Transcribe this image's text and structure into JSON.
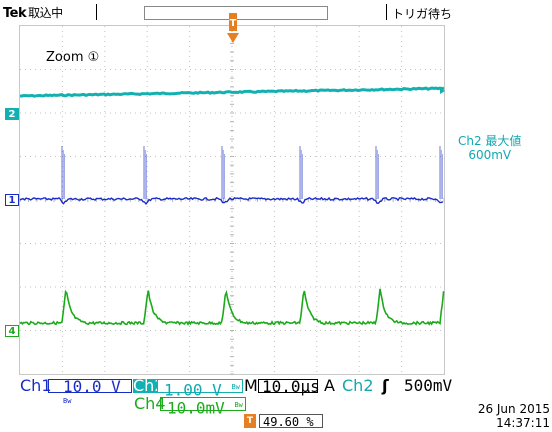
{
  "header": {
    "brand": "Tek",
    "acq_state": "取込中",
    "trigger_status": "トリガ待ち",
    "trigger_marker": "T"
  },
  "screen": {
    "zoom_label": "Zoom ①",
    "markers": {
      "ch2": "2",
      "ch1": "1",
      "ch4": "4"
    },
    "measurement": {
      "title": "Ch2 最大値",
      "value": "600mV"
    }
  },
  "status": {
    "ch1_label": "Ch1",
    "ch1_scale": "10.0 V",
    "ch2_label": "Ch2",
    "ch2_scale": "1.00 V",
    "ch4_label": "Ch4",
    "ch4_scale": "10.0mV",
    "bw_icon": "Bw",
    "timebase_prefix": "M",
    "timebase": "10.0µs",
    "trigger_mode": "A",
    "trigger_source": "Ch2",
    "trigger_edge_icon": "rising-edge-icon",
    "trigger_edge_glyph": "ʃ",
    "trigger_level": "500mV",
    "position_icon": "T",
    "position": "49.60 %",
    "date": "26 Jun  2015",
    "time": "14:37:11"
  },
  "colors": {
    "ch1": "#1a2cc8",
    "ch2": "#12b0b0",
    "ch4": "#1caa1c",
    "trigger": "#e67e22",
    "grid": "#b4b4b4"
  }
}
